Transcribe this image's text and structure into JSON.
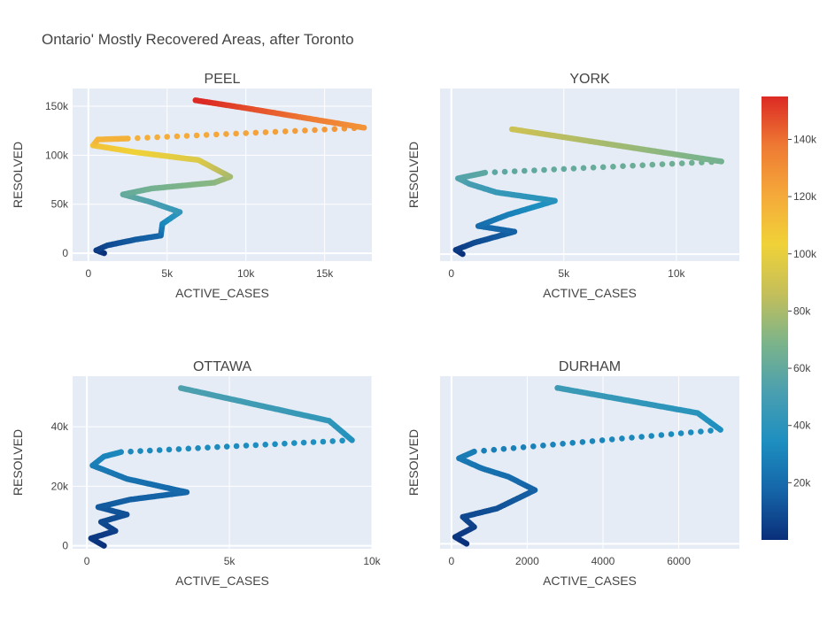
{
  "chart_data": {
    "type": "scatter",
    "title": "Ontario' Mostly Recovered Areas, after Toronto",
    "colorscale": [
      "#0a2f7a",
      "#1565a8",
      "#1d8fc0",
      "#4a9fb0",
      "#7cb48a",
      "#c4bf5a",
      "#f0d238",
      "#f5a93a",
      "#ee7a33",
      "#dc2a24"
    ],
    "colorbar": {
      "range": [
        0,
        155000
      ],
      "ticks": [
        20000,
        40000,
        60000,
        80000,
        100000,
        120000,
        140000
      ],
      "tick_labels": [
        "20k",
        "40k",
        "60k",
        "80k",
        "100k",
        "120k",
        "140k"
      ]
    },
    "subplots": [
      {
        "title": "PEEL",
        "xlabel": "ACTIVE_CASES",
        "ylabel": "RESOLVED",
        "xlim": [
          -1000,
          18000
        ],
        "ylim": [
          -8000,
          168000
        ],
        "xticks": [
          0,
          5000,
          10000,
          15000
        ],
        "xtick_labels": [
          "0",
          "5k",
          "10k",
          "15k"
        ],
        "yticks": [
          0,
          50000,
          100000,
          150000
        ],
        "ytick_labels": [
          "0",
          "50k",
          "100k",
          "150k"
        ],
        "path": [
          [
            1000,
            0
          ],
          [
            500,
            3000
          ],
          [
            1200,
            8000
          ],
          [
            3000,
            14000
          ],
          [
            4600,
            18000
          ],
          [
            4700,
            30000
          ],
          [
            5800,
            42000
          ],
          [
            4000,
            52000
          ],
          [
            2200,
            60000
          ],
          [
            4000,
            66000
          ],
          [
            8000,
            72000
          ],
          [
            9000,
            78000
          ],
          [
            7000,
            95000
          ],
          [
            3000,
            103000
          ],
          [
            300,
            110000
          ],
          [
            600,
            116000
          ],
          [
            2500,
            117000
          ],
          [
            17500,
            128000
          ],
          [
            10000,
            148000
          ],
          [
            6800,
            156000
          ]
        ]
      },
      {
        "title": "YORK",
        "xlabel": "ACTIVE_CASES",
        "ylabel": "RESOLVED",
        "xlim": [
          -500,
          12800
        ],
        "ylim": [
          -5000,
          118000
        ],
        "xticks": [
          0,
          5000,
          10000
        ],
        "xtick_labels": [
          "0",
          "5k",
          "10k"
        ],
        "yticks": [],
        "ytick_labels": [],
        "path": [
          [
            500,
            0
          ],
          [
            200,
            3000
          ],
          [
            1000,
            8000
          ],
          [
            2800,
            16000
          ],
          [
            1200,
            20000
          ],
          [
            2500,
            28000
          ],
          [
            4600,
            38000
          ],
          [
            2000,
            44000
          ],
          [
            800,
            50000
          ],
          [
            300,
            54000
          ],
          [
            1500,
            58000
          ],
          [
            12000,
            66000
          ],
          [
            2700,
            89000
          ]
        ]
      },
      {
        "title": "OTTAWA",
        "xlabel": "ACTIVE_CASES",
        "ylabel": "RESOLVED",
        "xlim": [
          -500,
          10000
        ],
        "ylim": [
          -1000,
          57000
        ],
        "xticks": [
          0,
          5000,
          10000
        ],
        "xtick_labels": [
          "0",
          "5k",
          "10k"
        ],
        "yticks": [
          0,
          20000,
          40000
        ],
        "ytick_labels": [
          "0",
          "20k",
          "40k"
        ],
        "path": [
          [
            600,
            0
          ],
          [
            150,
            2500
          ],
          [
            1000,
            5000
          ],
          [
            500,
            8000
          ],
          [
            1400,
            10500
          ],
          [
            400,
            13000
          ],
          [
            1500,
            15500
          ],
          [
            3500,
            18000
          ],
          [
            1400,
            22500
          ],
          [
            200,
            27000
          ],
          [
            600,
            30000
          ],
          [
            1200,
            31500
          ],
          [
            9300,
            35500
          ],
          [
            8500,
            42000
          ],
          [
            3300,
            53000
          ]
        ]
      },
      {
        "title": "DURHAM",
        "xlabel": "ACTIVE_CASES",
        "ylabel": "RESOLVED",
        "xlim": [
          -300,
          7600
        ],
        "ylim": [
          -1500,
          50000
        ],
        "xticks": [
          0,
          2000,
          4000,
          6000
        ],
        "xtick_labels": [
          "0",
          "2000",
          "4000",
          "6000"
        ],
        "yticks": [],
        "ytick_labels": [],
        "path": [
          [
            400,
            0
          ],
          [
            100,
            2000
          ],
          [
            600,
            5000
          ],
          [
            300,
            8000
          ],
          [
            1200,
            10500
          ],
          [
            2200,
            16000
          ],
          [
            1500,
            20000
          ],
          [
            800,
            22500
          ],
          [
            200,
            25500
          ],
          [
            600,
            27500
          ],
          [
            7100,
            34000
          ],
          [
            6500,
            39000
          ],
          [
            2800,
            46500
          ]
        ]
      }
    ]
  }
}
